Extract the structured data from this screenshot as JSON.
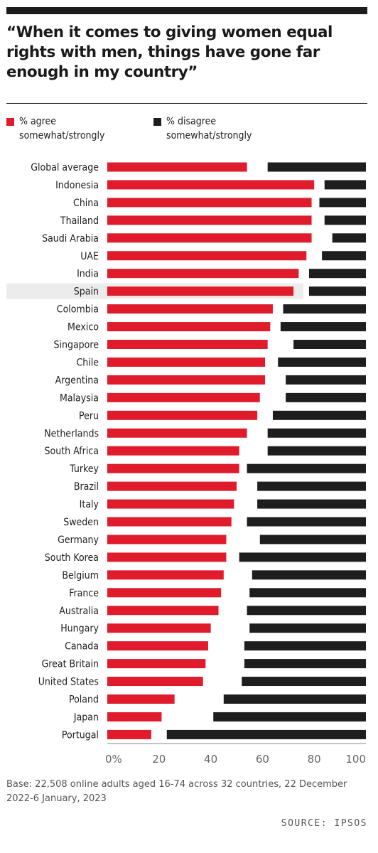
{
  "title": "“When it comes to giving women equal rights with men, things have gone far enough in my country”",
  "footnote": "Base: 22,508 online adults aged 16-74 across 32 countries, 22 December 2022-6 January, 2023",
  "source": "SOURCE: IPSOS",
  "colors": {
    "agree": "#e01b2b",
    "disagree": "#1e1e1e",
    "highlight": "#ececec",
    "text": "#1f1f1f",
    "axis": "#888888"
  },
  "chart_data": {
    "type": "bar",
    "orientation": "horizontal",
    "stacked_diverging": true,
    "highlighted_category": "Spain",
    "categories": [
      "Global average",
      "Indonesia",
      "China",
      "Thailand",
      "Saudi Arabia",
      "UAE",
      "India",
      "Spain",
      "Colombia",
      "Mexico",
      "Singapore",
      "Chile",
      "Argentina",
      "Malaysia",
      "Peru",
      "Netherlands",
      "South Africa",
      "Turkey",
      "Brazil",
      "Italy",
      "Sweden",
      "Germany",
      "South Korea",
      "Belgium",
      "France",
      "Australia",
      "Hungary",
      "Canada",
      "Great Britain",
      "United States",
      "Poland",
      "Japan",
      "Portugal"
    ],
    "series": [
      {
        "name": "% agree\nsomewhat/strongly",
        "color": "#e01b2b",
        "values": [
          54,
          80,
          79,
          79,
          79,
          77,
          74,
          72,
          64,
          63,
          62,
          61,
          61,
          59,
          58,
          54,
          51,
          51,
          50,
          49,
          48,
          46,
          46,
          45,
          44,
          43,
          40,
          39,
          38,
          37,
          26,
          21,
          17
        ]
      },
      {
        "name": "% disagree\nsomewhat/strongly",
        "color": "#1e1e1e",
        "values": [
          38,
          16,
          18,
          16,
          13,
          17,
          22,
          22,
          32,
          33,
          28,
          34,
          31,
          31,
          36,
          38,
          38,
          46,
          42,
          42,
          46,
          41,
          49,
          44,
          45,
          46,
          45,
          47,
          47,
          48,
          55,
          59,
          77
        ]
      }
    ],
    "x_ticks": [
      "0%",
      "20",
      "40",
      "60",
      "80",
      "100"
    ],
    "xlim": [
      0,
      100
    ],
    "grid": false,
    "legend_position": "top-left"
  }
}
